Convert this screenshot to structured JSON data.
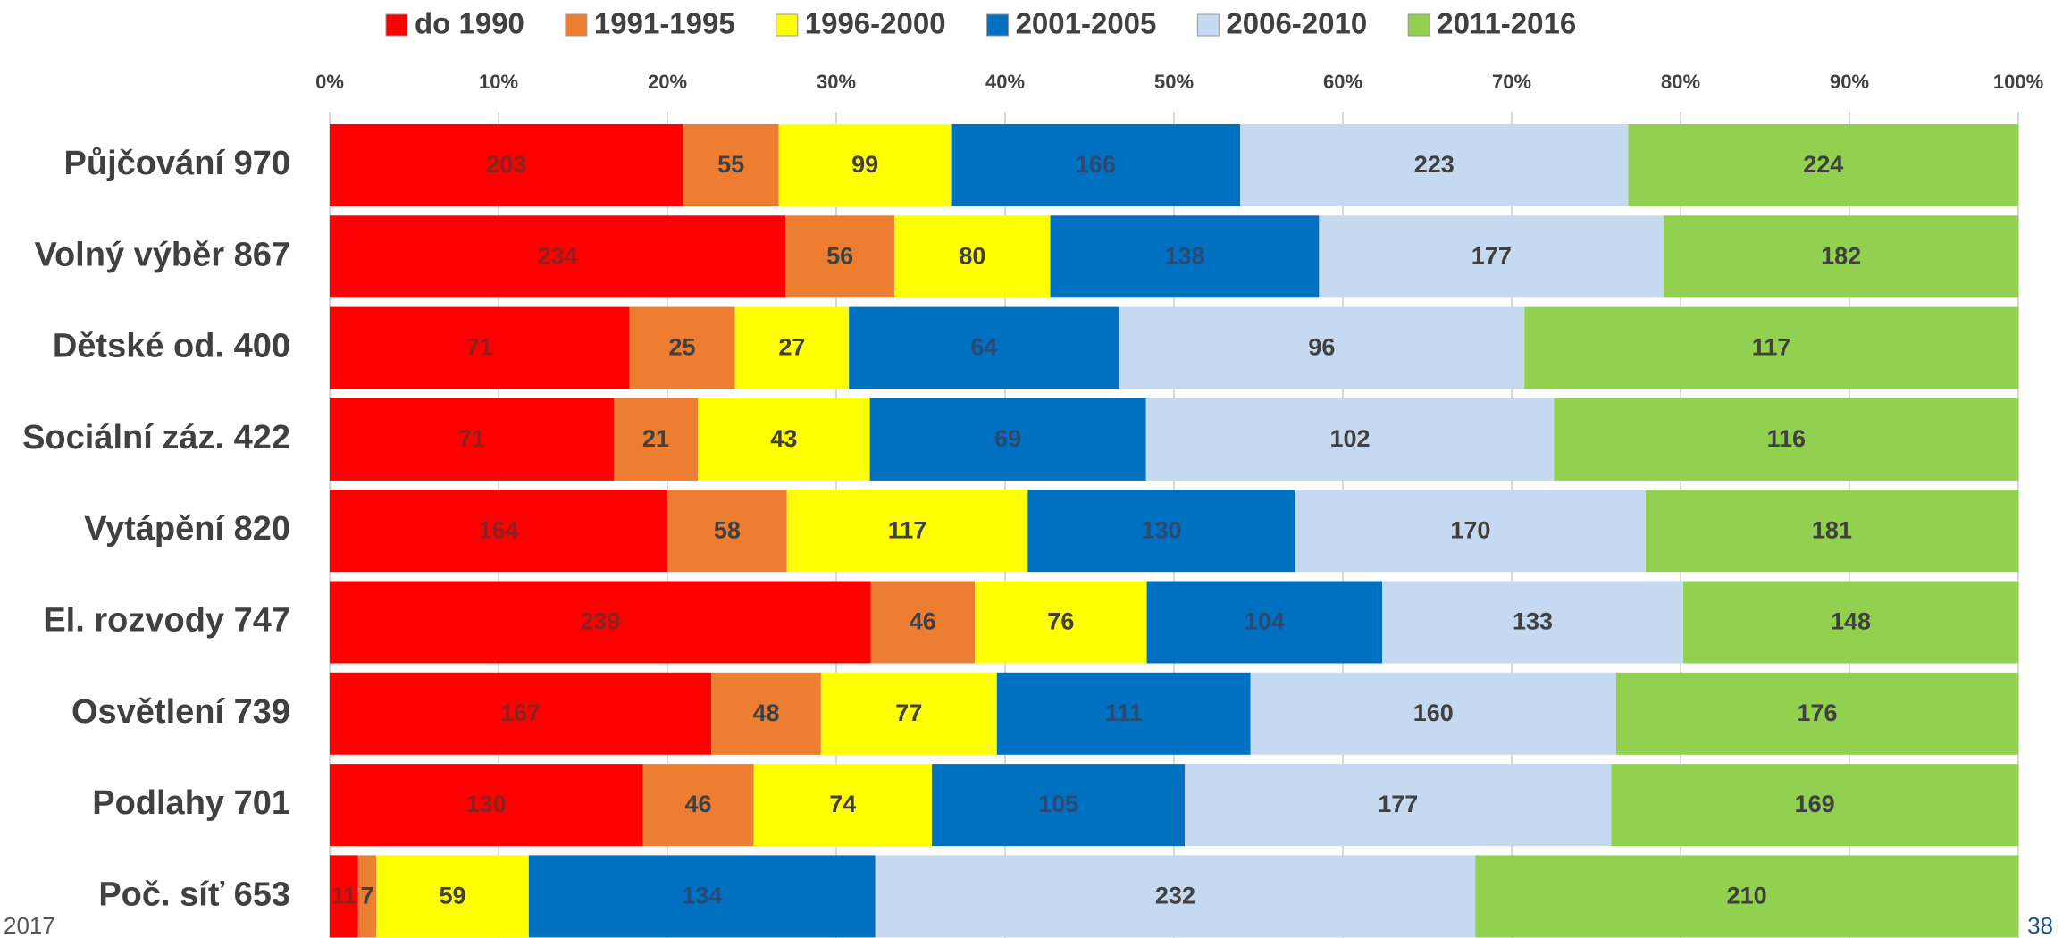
{
  "chart_data": {
    "type": "bar",
    "orientation": "horizontal",
    "stacking": "percent",
    "categories": [
      "Půjčování 970",
      "Volný výběr 867",
      "Dětské od. 400",
      "Sociální záz. 422",
      "Vytápění 820",
      "El. rozvody 747",
      "Osvětlení 739",
      "Podlahy 701",
      "Poč. síť 653"
    ],
    "series": [
      {
        "name": "do 1990",
        "color": "#ff0000",
        "values": [
          203,
          234,
          71,
          71,
          164,
          239,
          167,
          130,
          11
        ]
      },
      {
        "name": "1991-1995",
        "color": "#ed7d31",
        "values": [
          55,
          56,
          25,
          21,
          58,
          46,
          48,
          46,
          7
        ]
      },
      {
        "name": "1996-2000",
        "color": "#ffff00",
        "values": [
          99,
          80,
          27,
          43,
          117,
          76,
          77,
          74,
          59
        ]
      },
      {
        "name": "2001-2005",
        "color": "#0070c0",
        "values": [
          166,
          138,
          64,
          69,
          130,
          104,
          111,
          105,
          134
        ]
      },
      {
        "name": "2006-2010",
        "color": "#c5d9f1",
        "values": [
          223,
          177,
          96,
          102,
          170,
          133,
          160,
          177,
          232
        ]
      },
      {
        "name": "2011-2016",
        "color": "#92d050",
        "values": [
          224,
          182,
          117,
          116,
          181,
          148,
          176,
          169,
          210
        ]
      }
    ],
    "xlim": [
      0,
      100
    ],
    "xticks": [
      {
        "value": 0,
        "label": "0%"
      },
      {
        "value": 10,
        "label": "10%"
      },
      {
        "value": 20,
        "label": "20%"
      },
      {
        "value": 30,
        "label": "30%"
      },
      {
        "value": 40,
        "label": "40%"
      },
      {
        "value": 50,
        "label": "50%"
      },
      {
        "value": 60,
        "label": "60%"
      },
      {
        "value": 70,
        "label": "70%"
      },
      {
        "value": 80,
        "label": "80%"
      },
      {
        "value": 90,
        "label": "90%"
      },
      {
        "value": 100,
        "label": "100%"
      }
    ],
    "grid": true,
    "legend": "top"
  },
  "footer": {
    "left": "2017",
    "page": "38"
  }
}
